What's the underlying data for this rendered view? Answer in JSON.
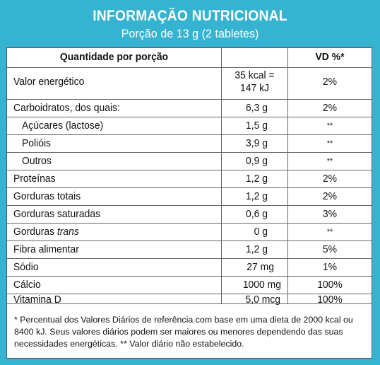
{
  "title": "INFORMAÇÃO NUTRICIONAL",
  "subtitle": "Porção de 13 g (2 tabletes)",
  "header": {
    "quantity": "Quantidade por porção",
    "vd": "VD %*"
  },
  "rows": [
    {
      "name": "Valor energético",
      "amount": "35 kcal =",
      "amount2": "147 kJ",
      "vd": "2%"
    },
    {
      "name": "Carboidratos, dos quais:",
      "amount": "6,3 g",
      "vd": "2%"
    },
    {
      "name": "Açúcares (lactose)",
      "amount": "1,5 g",
      "vd": "**"
    },
    {
      "name": "Polióis",
      "amount": "3,9 g",
      "vd": "**"
    },
    {
      "name": "Outros",
      "amount": "0,9 g",
      "vd": "**"
    },
    {
      "name": "Proteínas",
      "amount": "1,2 g",
      "vd": "2%"
    },
    {
      "name": "Gorduras totais",
      "amount": "1,2 g",
      "vd": "2%"
    },
    {
      "name": "Gorduras saturadas",
      "amount": "0,6 g",
      "vd": "3%"
    },
    {
      "name": "Gorduras ",
      "name_italic": "trans",
      "amount": "0 g",
      "vd": "**"
    },
    {
      "name": "Fibra alimentar",
      "amount": "1,2 g",
      "vd": "5%"
    },
    {
      "name": "Sódio",
      "amount": "27 mg",
      "vd": "1%"
    },
    {
      "name": "Cálcio",
      "amount": "1000 mg",
      "vd": "100%"
    },
    {
      "name": "Vitamina D",
      "amount": "5,0 mcg",
      "vd": "100%"
    }
  ],
  "footnote": "* Percentual dos Valores Diários de referência com base em uma dieta de 2000 kcal ou 8400 kJ. Seus valores diários podem ser maiores ou menores dependendo das suas necessidades energéticas. ** Valor diário não estabelecido.",
  "colors": {
    "accent": "#35b3d1",
    "border": "#555555"
  }
}
